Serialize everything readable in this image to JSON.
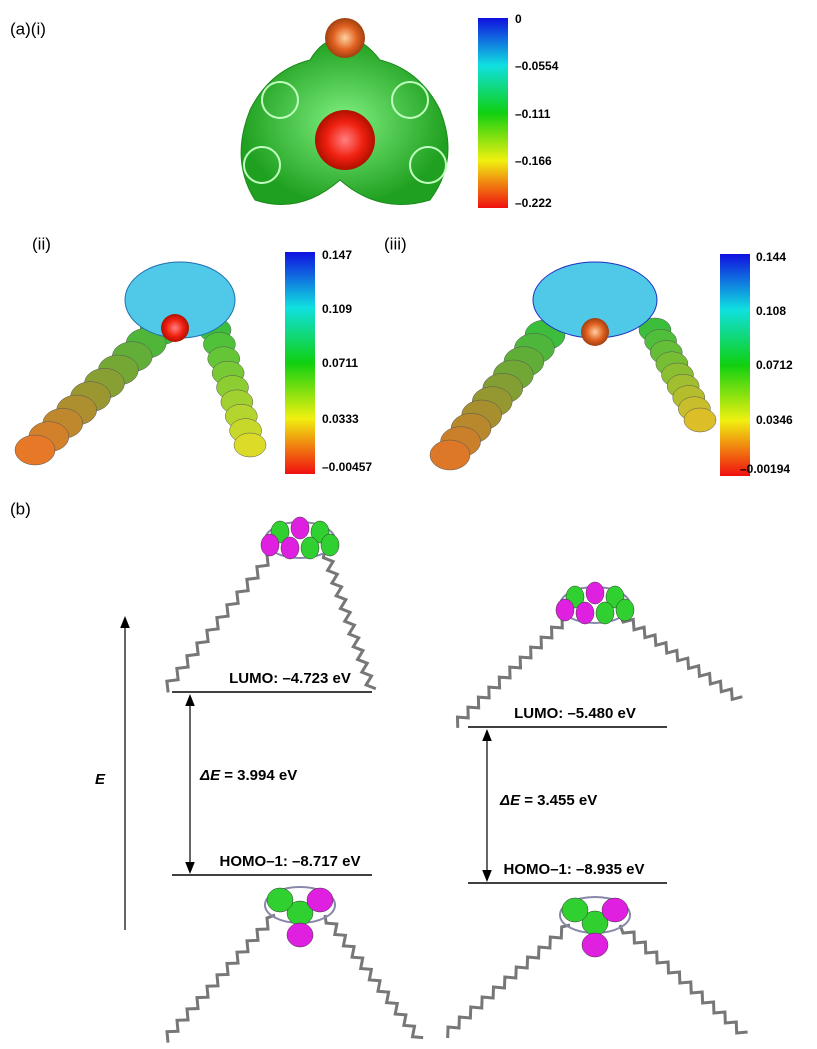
{
  "panel_a": {
    "label": "(a)(i)",
    "colorbar_ticks": [
      "0",
      "–0.0554",
      "–0.111",
      "–0.166",
      "–0.222"
    ]
  },
  "panel_ii": {
    "label": "(ii)",
    "colorbar_ticks": [
      "0.147",
      "0.109",
      "0.0711",
      "0.0333",
      "–0.00457"
    ]
  },
  "panel_iii": {
    "label": "(iii)",
    "colorbar_ticks": [
      "0.144",
      "0.108",
      "0.0712",
      "0.0346",
      "–0.00194"
    ]
  },
  "panel_b": {
    "label": "(b)",
    "axis_label": "E",
    "left": {
      "lumo": "LUMO: –4.723 eV",
      "gap_symbol": "ΔE",
      "gap_value": "= 3.994 eV",
      "homo": "HOMO–1: –8.717 eV"
    },
    "right": {
      "lumo": "LUMO: –5.480 eV",
      "gap_symbol": "ΔE",
      "gap_value": "= 3.455 eV",
      "homo": "HOMO–1: –8.935 eV"
    }
  }
}
